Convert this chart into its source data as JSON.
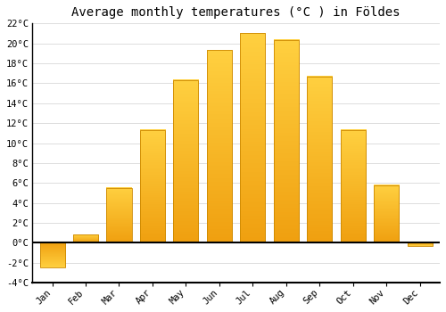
{
  "months": [
    "Jan",
    "Feb",
    "Mar",
    "Apr",
    "May",
    "Jun",
    "Jul",
    "Aug",
    "Sep",
    "Oct",
    "Nov",
    "Dec"
  ],
  "values": [
    -2.5,
    0.8,
    5.5,
    11.3,
    16.3,
    19.3,
    21.0,
    20.3,
    16.7,
    11.3,
    5.8,
    -0.3
  ],
  "bar_color_bottom": "#F0A010",
  "bar_color_top": "#FFD040",
  "bar_edge_color": "#CC8800",
  "title": "Average monthly temperatures (°C ) in Földes",
  "ylim": [
    -4,
    22
  ],
  "yticks": [
    -4,
    -2,
    0,
    2,
    4,
    6,
    8,
    10,
    12,
    14,
    16,
    18,
    20,
    22
  ],
  "ytick_labels": [
    "-4°C",
    "-2°C",
    "0°C",
    "2°C",
    "4°C",
    "6°C",
    "8°C",
    "10°C",
    "12°C",
    "14°C",
    "16°C",
    "18°C",
    "20°C",
    "22°C"
  ],
  "background_color": "#ffffff",
  "grid_color": "#dddddd",
  "title_fontsize": 10,
  "tick_fontsize": 7.5,
  "zero_line_color": "#000000",
  "figsize": [
    5.0,
    3.5
  ],
  "dpi": 100
}
